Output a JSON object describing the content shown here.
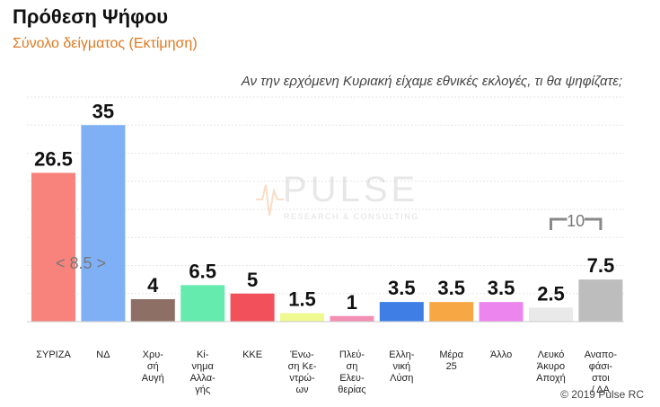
{
  "header": {
    "title": "Πρόθεση Ψήφου",
    "subtitle": "Σύνολο δείγματος   (Εκτίμηση)",
    "question": "Αν την ερχόμενη Κυριακή είχαμε εθνικές εκλογές, τι θα ψηφίζατε;"
  },
  "watermark": {
    "brand": "PULSE",
    "tagline": "RESEARCH & CONSULTING"
  },
  "footer": {
    "copyright": "© 2019 Pulse RC"
  },
  "chart_data": {
    "type": "bar",
    "categories": [
      [
        "ΣΥΡΙΖΑ"
      ],
      [
        "ΝΔ"
      ],
      [
        "Χρυ-",
        "σή",
        "Αυγή"
      ],
      [
        "Κί-",
        "νημα",
        "Αλλα-",
        "γής"
      ],
      [
        "ΚΚΕ"
      ],
      [
        "Ένω-",
        "ση Κε-",
        "ντρώ-",
        "ων"
      ],
      [
        "Πλεύ-",
        "ση",
        "Ελευ-",
        "θερίας"
      ],
      [
        "Ελλη-",
        "νική",
        "Λύση"
      ],
      [
        "Μέρα",
        "25"
      ],
      [
        "Άλλο"
      ],
      [
        "Λευκό",
        "Άκυρο",
        "Αποχή"
      ],
      [
        "Αναπο-",
        "φάσι-",
        "στοι",
        "/ ΔΑ"
      ]
    ],
    "values": [
      26.5,
      35,
      4,
      6.5,
      5,
      1.5,
      1,
      3.5,
      3.5,
      3.5,
      2.5,
      7.5
    ],
    "value_labels": [
      "26.5",
      "35",
      "4",
      "6.5",
      "5",
      "1.5",
      "1",
      "3.5",
      "3.5",
      "3.5",
      "2.5",
      "7.5"
    ],
    "colors": [
      "#f8837c",
      "#7fb0f6",
      "#8e6f66",
      "#66ebae",
      "#f2505a",
      "#eef98f",
      "#f28fb3",
      "#3f7fe5",
      "#f7a744",
      "#ec86ee",
      "#e9e9e9",
      "#bdbdbd"
    ],
    "ylim": [
      0,
      40
    ],
    "grid": true,
    "annotations": [
      {
        "text": "< 8.5 >",
        "series_index": 0
      },
      {
        "text": "10",
        "bracket_over": [
          10,
          11
        ]
      }
    ]
  }
}
